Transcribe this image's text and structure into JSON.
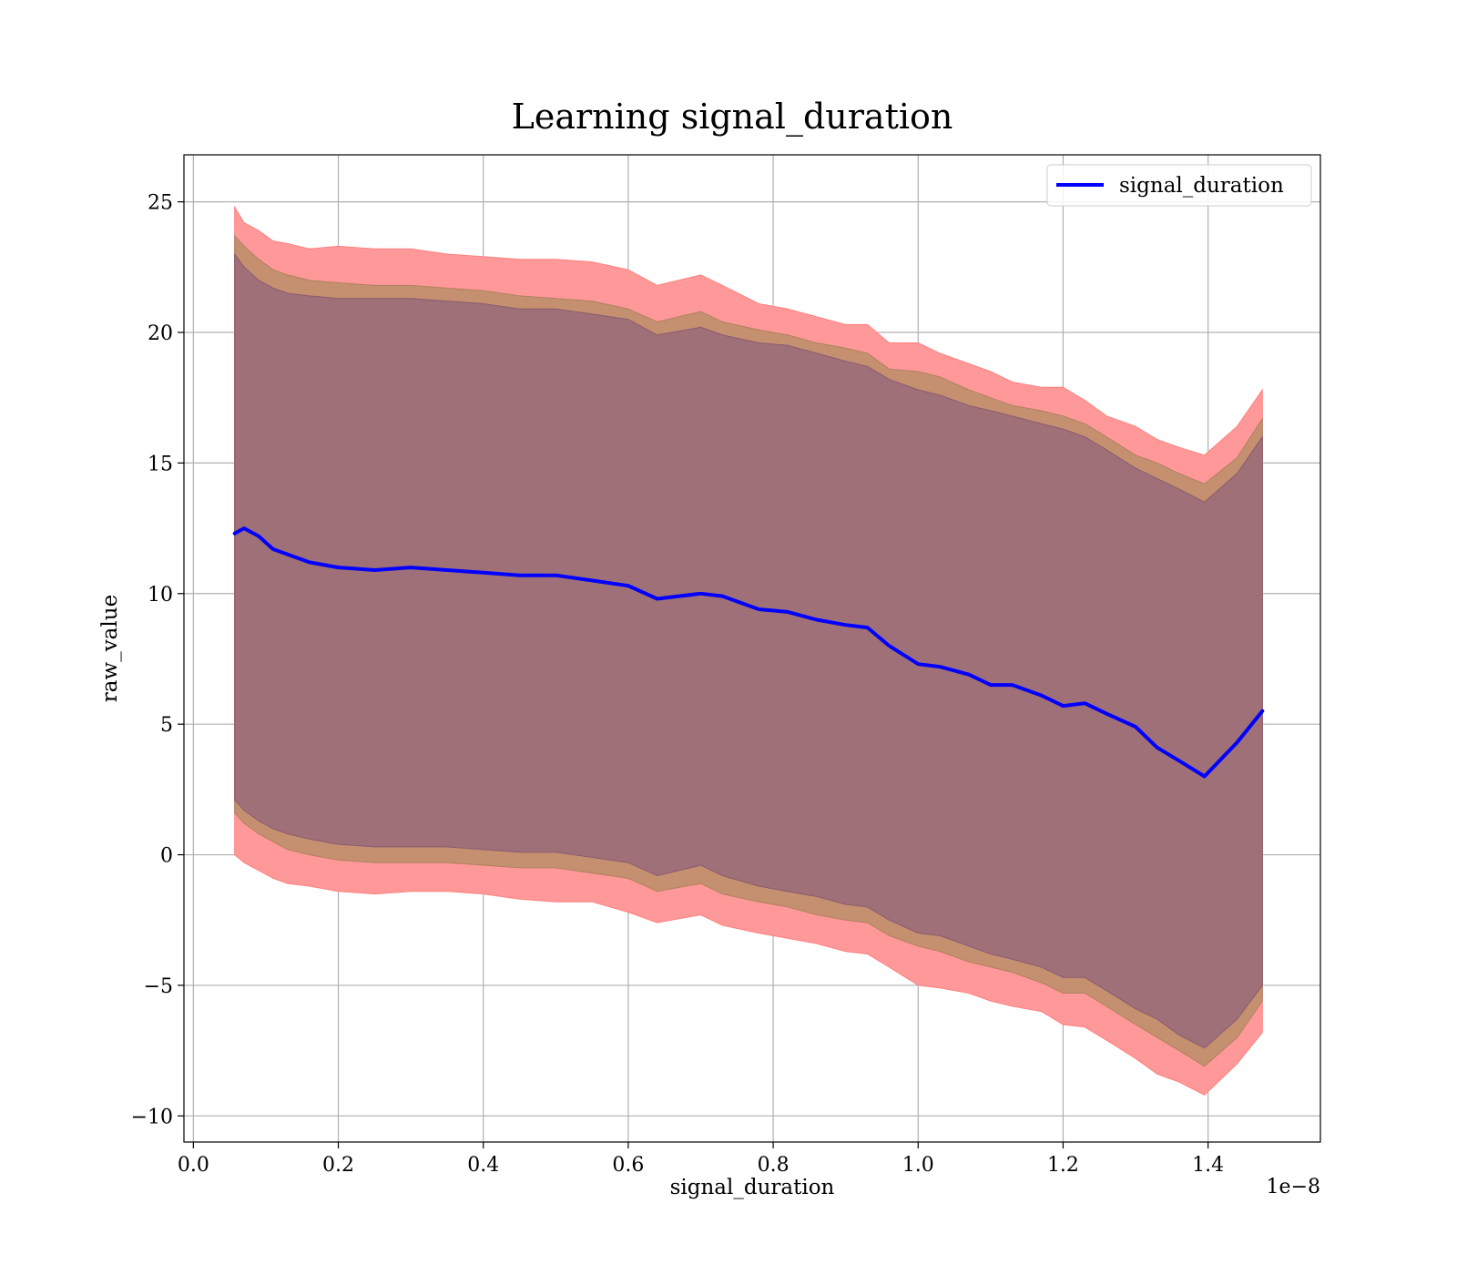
{
  "chart_data": {
    "type": "line",
    "title": "Learning signal_duration",
    "xlabel": "signal_duration",
    "ylabel": "raw_value",
    "x_offset_label": "1e−8",
    "xlim": [
      -0.013,
      1.555
    ],
    "ylim": [
      -11.0,
      26.8
    ],
    "x_ticks": [
      0.0,
      0.2,
      0.4,
      0.6,
      0.8,
      1.0,
      1.2,
      1.4
    ],
    "x_tick_labels": [
      "0.0",
      "0.2",
      "0.4",
      "0.6",
      "0.8",
      "1.0",
      "1.2",
      "1.4"
    ],
    "y_ticks": [
      -10,
      -5,
      0,
      5,
      10,
      15,
      20,
      25
    ],
    "y_tick_labels": [
      "−10",
      "−5",
      "0",
      "5",
      "10",
      "15",
      "20",
      "25"
    ],
    "grid": true,
    "legend": {
      "placement": "top-right",
      "entries": [
        "signal_duration"
      ]
    },
    "colors": {
      "line": "#0000ff",
      "band_outer": "#ff9999",
      "band_middle": "#c49070",
      "band_inner": "#a07078",
      "grid": "#b0b0b0"
    },
    "x": [
      0.057,
      0.07,
      0.09,
      0.11,
      0.13,
      0.16,
      0.2,
      0.25,
      0.3,
      0.35,
      0.4,
      0.45,
      0.5,
      0.55,
      0.6,
      0.64,
      0.7,
      0.73,
      0.78,
      0.82,
      0.86,
      0.9,
      0.93,
      0.96,
      1.0,
      1.03,
      1.07,
      1.1,
      1.13,
      1.17,
      1.2,
      1.23,
      1.26,
      1.3,
      1.33,
      1.36,
      1.395,
      1.44,
      1.475
    ],
    "series": [
      {
        "name": "signal_duration",
        "values": [
          12.3,
          12.5,
          12.2,
          11.7,
          11.5,
          11.2,
          11.0,
          10.9,
          11.0,
          10.9,
          10.8,
          10.7,
          10.7,
          10.5,
          10.3,
          9.8,
          10.0,
          9.9,
          9.4,
          9.3,
          9.0,
          8.8,
          8.7,
          8.0,
          7.3,
          7.2,
          6.9,
          6.5,
          6.5,
          6.1,
          5.7,
          5.8,
          5.4,
          4.9,
          4.1,
          3.6,
          3.0,
          4.3,
          5.5
        ],
        "bands": [
          {
            "level": "outer",
            "upper": [
              24.8,
              24.2,
              23.9,
              23.5,
              23.4,
              23.2,
              23.3,
              23.2,
              23.2,
              23.0,
              22.9,
              22.8,
              22.8,
              22.7,
              22.4,
              21.8,
              22.2,
              21.8,
              21.1,
              20.9,
              20.6,
              20.3,
              20.3,
              19.6,
              19.6,
              19.2,
              18.8,
              18.5,
              18.1,
              17.9,
              17.9,
              17.4,
              16.8,
              16.4,
              15.9,
              15.6,
              15.3,
              16.4,
              17.8
            ],
            "lower": [
              0.0,
              -0.3,
              -0.6,
              -0.9,
              -1.1,
              -1.2,
              -1.4,
              -1.5,
              -1.4,
              -1.4,
              -1.5,
              -1.7,
              -1.8,
              -1.8,
              -2.2,
              -2.6,
              -2.3,
              -2.7,
              -3.0,
              -3.2,
              -3.4,
              -3.7,
              -3.8,
              -4.3,
              -5.0,
              -5.1,
              -5.3,
              -5.6,
              -5.8,
              -6.0,
              -6.5,
              -6.6,
              -7.1,
              -7.8,
              -8.4,
              -8.7,
              -9.2,
              -8.0,
              -6.8
            ]
          },
          {
            "level": "middle",
            "upper": [
              23.7,
              23.3,
              22.8,
              22.4,
              22.2,
              22.0,
              21.9,
              21.8,
              21.8,
              21.7,
              21.6,
              21.4,
              21.3,
              21.2,
              20.9,
              20.4,
              20.8,
              20.4,
              20.1,
              19.9,
              19.6,
              19.4,
              19.2,
              18.6,
              18.5,
              18.3,
              17.8,
              17.5,
              17.2,
              17.0,
              16.8,
              16.5,
              16.0,
              15.3,
              15.0,
              14.6,
              14.2,
              15.2,
              16.7
            ],
            "lower": [
              1.6,
              1.2,
              0.8,
              0.5,
              0.2,
              0.0,
              -0.2,
              -0.3,
              -0.3,
              -0.3,
              -0.4,
              -0.5,
              -0.5,
              -0.7,
              -0.9,
              -1.4,
              -1.1,
              -1.5,
              -1.8,
              -2.0,
              -2.3,
              -2.5,
              -2.6,
              -3.1,
              -3.5,
              -3.7,
              -4.1,
              -4.3,
              -4.5,
              -4.9,
              -5.3,
              -5.3,
              -5.8,
              -6.5,
              -7.0,
              -7.5,
              -8.1,
              -7.0,
              -5.6
            ]
          },
          {
            "level": "inner",
            "upper": [
              23.0,
              22.5,
              22.0,
              21.7,
              21.5,
              21.4,
              21.3,
              21.3,
              21.3,
              21.2,
              21.1,
              20.9,
              20.9,
              20.7,
              20.5,
              19.9,
              20.2,
              19.9,
              19.6,
              19.5,
              19.2,
              18.9,
              18.7,
              18.2,
              17.8,
              17.6,
              17.2,
              17.0,
              16.8,
              16.5,
              16.3,
              16.0,
              15.5,
              14.8,
              14.4,
              14.0,
              13.5,
              14.6,
              16.0
            ],
            "lower": [
              2.1,
              1.7,
              1.3,
              1.0,
              0.8,
              0.6,
              0.4,
              0.3,
              0.3,
              0.3,
              0.2,
              0.1,
              0.1,
              -0.1,
              -0.3,
              -0.8,
              -0.4,
              -0.8,
              -1.2,
              -1.4,
              -1.6,
              -1.9,
              -2.0,
              -2.5,
              -3.0,
              -3.1,
              -3.5,
              -3.8,
              -4.0,
              -4.3,
              -4.7,
              -4.7,
              -5.2,
              -5.9,
              -6.3,
              -6.9,
              -7.4,
              -6.3,
              -5.0
            ]
          }
        ]
      }
    ]
  }
}
